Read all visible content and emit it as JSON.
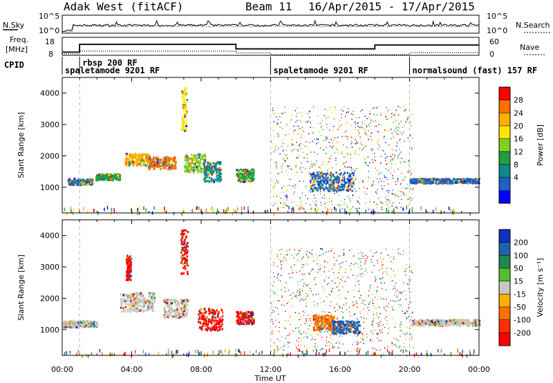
{
  "header": {
    "station": "Adak West (fitACF)",
    "beam": "Beam 11",
    "date_range": "16/Apr/2015 - 17/Apr/2015"
  },
  "noise_panel": {
    "left_label": "N.Sky",
    "right_label": "N.Search",
    "left_ticks": [
      "10^5",
      "10^0"
    ],
    "right_ticks": [
      "10^5",
      "10^0"
    ]
  },
  "freq_panel": {
    "left_label_1": "Freq.",
    "left_label_2": "[MHz]",
    "right_label": "Nave",
    "left_ticks": [
      "18",
      "8"
    ],
    "right_ticks": [
      "60",
      "0"
    ],
    "freq_steps": [
      {
        "t": 0.0,
        "v": 8.5
      },
      {
        "t": 1.0,
        "v": 14.5
      },
      {
        "t": 10.0,
        "v": 11.0
      },
      {
        "t": 18.0,
        "v": 14.0
      },
      {
        "t": 24.0,
        "v": 14.0
      }
    ],
    "nave_steps": [
      {
        "t": 0.0,
        "v": 5
      },
      {
        "t": 1.0,
        "v": 14
      },
      {
        "t": 10.0,
        "v": 8
      },
      {
        "t": 12.0,
        "v": 2
      },
      {
        "t": 20.0,
        "v": 9
      },
      {
        "t": 24.0,
        "v": 9
      }
    ]
  },
  "cpid": {
    "label": "CPID",
    "segments": [
      {
        "text": "rbsp 200 RF",
        "start": 1.0,
        "row": 0
      },
      {
        "text": "spaletamode 9201 RF",
        "start": 0.0,
        "row": 1
      },
      {
        "text": "spaletamode 9201 RF",
        "start": 12.0,
        "row": 1
      },
      {
        "text": "normalsound (fast) 157 RF",
        "start": 20.0,
        "row": 1
      }
    ],
    "boundaries": [
      1.0,
      12.0,
      20.0
    ]
  },
  "chart_data": [
    {
      "type": "heatmap",
      "name": "power",
      "ylabel": "Slant Range [km]",
      "ylim": [
        180,
        4500
      ],
      "yticks": [
        1000,
        2000,
        3000,
        4000
      ],
      "colorbar_label": "Power [dB]",
      "colorbar_ticks": [
        "28",
        "24",
        "20",
        "16",
        "12",
        "8",
        "4"
      ],
      "colorbar_colors": [
        "#ff0000",
        "#ff7000",
        "#ffb000",
        "#ffe800",
        "#80d020",
        "#20a040",
        "#108888",
        "#2060c0",
        "#0000ff"
      ],
      "clusters": [
        {
          "t": 1.0,
          "r0": 1100,
          "r1": 1300,
          "tw": 1.4,
          "c": "#2060c0"
        },
        {
          "t": 2.6,
          "r0": 1250,
          "r1": 1450,
          "tw": 1.4,
          "c": "#20a040"
        },
        {
          "t": 4.3,
          "r0": 1700,
          "r1": 2100,
          "tw": 1.4,
          "c": "#ffb000"
        },
        {
          "t": 5.7,
          "r0": 1600,
          "r1": 2000,
          "tw": 1.6,
          "c": "#ff7000"
        },
        {
          "t": 7.6,
          "r0": 1500,
          "r1": 2100,
          "tw": 1.2,
          "c": "#80d020"
        },
        {
          "t": 8.6,
          "r0": 1200,
          "r1": 1900,
          "tw": 1.0,
          "c": "#108888"
        },
        {
          "t": 10.5,
          "r0": 1200,
          "r1": 1600,
          "tw": 1.0,
          "c": "#20a040"
        },
        {
          "t": 7.0,
          "r0": 2800,
          "r1": 4200,
          "tw": 0.3,
          "c": "#ffe800"
        },
        {
          "t": 15.5,
          "r0": 900,
          "r1": 1500,
          "tw": 2.5,
          "c": "#2060c0"
        },
        {
          "t": 22.0,
          "r0": 1150,
          "r1": 1300,
          "tw": 4.0,
          "c": "#2060c0"
        }
      ]
    },
    {
      "type": "heatmap",
      "name": "velocity",
      "ylabel": "Slant Range [km]",
      "ylim": [
        180,
        4500
      ],
      "yticks": [
        1000,
        2000,
        3000,
        4000
      ],
      "xlabel": "Time UT",
      "xticks": [
        "00:00",
        "04:00",
        "08:00",
        "12:00",
        "16:00",
        "20:00",
        "00:00"
      ],
      "colorbar_label": "Velocity [m s^-1]",
      "colorbar_ticks": [
        "200",
        "100",
        "50",
        "15",
        "-15",
        "-50",
        "-100",
        "-200"
      ],
      "colorbar_colors": [
        "#1030c0",
        "#2060b0",
        "#208850",
        "#50c030",
        "#c8c8c0",
        "#ffb000",
        "#ff7000",
        "#ff3000",
        "#ff0000"
      ],
      "clusters": [
        {
          "t": 1.0,
          "r0": 1100,
          "r1": 1300,
          "tw": 2.0,
          "c": "#c8c8c0"
        },
        {
          "t": 4.3,
          "r0": 1600,
          "r1": 2200,
          "tw": 2.0,
          "c": "#c8c8c0"
        },
        {
          "t": 6.5,
          "r0": 1400,
          "r1": 2000,
          "tw": 1.4,
          "c": "#c8c8c0"
        },
        {
          "t": 8.5,
          "r0": 1000,
          "r1": 1700,
          "tw": 1.4,
          "c": "#ff0000"
        },
        {
          "t": 10.5,
          "r0": 1200,
          "r1": 1600,
          "tw": 1.0,
          "c": "#ff0000"
        },
        {
          "t": 7.0,
          "r0": 2800,
          "r1": 4200,
          "tw": 0.4,
          "c": "#ff0000"
        },
        {
          "t": 3.8,
          "r0": 2600,
          "r1": 3400,
          "tw": 0.3,
          "c": "#ff0000"
        },
        {
          "t": 15.0,
          "r0": 1000,
          "r1": 1500,
          "tw": 1.2,
          "c": "#ff7000"
        },
        {
          "t": 16.3,
          "r0": 900,
          "r1": 1300,
          "tw": 1.6,
          "c": "#2060b0"
        },
        {
          "t": 22.0,
          "r0": 1150,
          "r1": 1350,
          "tw": 4.0,
          "c": "#c8c8c0"
        }
      ]
    }
  ]
}
